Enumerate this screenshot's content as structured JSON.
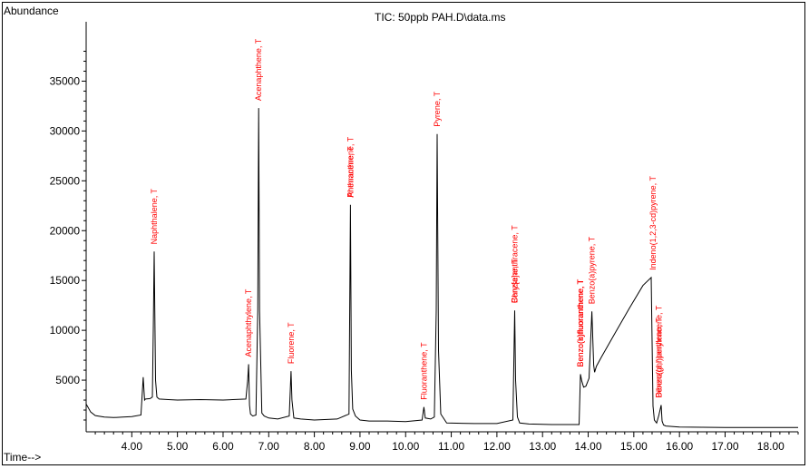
{
  "chart_data": {
    "type": "line",
    "title": "TIC: 50ppb PAH.D\\data.ms",
    "ylabel": "Abundance",
    "xlabel": "Time-->",
    "xlim": [
      3.0,
      18.6
    ],
    "ylim": [
      0,
      39500
    ],
    "x_ticks": [
      "4.00",
      "5.00",
      "6.00",
      "7.00",
      "8.00",
      "9.00",
      "10.00",
      "11.00",
      "12.00",
      "13.00",
      "14.00",
      "15.00",
      "16.00",
      "17.00",
      "18.00"
    ],
    "y_ticks": [
      "5000",
      "10000",
      "15000",
      "20000",
      "25000",
      "30000",
      "35000"
    ],
    "series": [
      {
        "x": [
          3.0,
          3.1,
          3.2,
          3.4,
          3.6,
          3.8,
          4.0,
          4.2,
          4.22,
          4.25,
          4.28,
          4.3,
          4.4,
          4.45,
          4.47,
          4.49,
          4.52,
          4.55,
          4.6,
          4.8,
          5.0,
          5.5,
          6.0,
          6.5,
          6.54,
          6.56,
          6.58,
          6.6,
          6.65,
          6.72,
          6.76,
          6.78,
          6.8,
          6.85,
          6.9,
          7.0,
          7.2,
          7.45,
          7.49,
          7.51,
          7.55,
          7.7,
          8.0,
          8.5,
          8.76,
          8.79,
          8.81,
          8.84,
          8.9,
          9.0,
          9.2,
          9.6,
          10.0,
          10.36,
          10.4,
          10.43,
          10.55,
          10.63,
          10.67,
          10.69,
          10.72,
          10.77,
          10.9,
          11.5,
          12.0,
          12.35,
          12.39,
          12.41,
          12.45,
          12.5,
          12.7,
          13.2,
          13.8,
          13.83,
          13.86,
          13.9,
          13.95,
          14.02,
          14.08,
          14.12,
          14.14,
          14.18,
          14.3,
          14.6,
          14.9,
          15.2,
          15.38,
          15.42,
          15.45,
          15.5,
          15.55,
          15.6,
          15.62,
          15.65,
          15.7,
          16.0,
          17.0,
          18.0,
          18.6
        ],
        "y": [
          2600,
          1800,
          1450,
          1300,
          1250,
          1300,
          1350,
          1500,
          3000,
          5300,
          3000,
          3100,
          3150,
          3300,
          10000,
          17900,
          5000,
          3300,
          3100,
          3050,
          3000,
          3050,
          3000,
          3100,
          5000,
          6600,
          2500,
          1600,
          1400,
          1500,
          12000,
          32300,
          12000,
          1700,
          1400,
          1200,
          1100,
          1400,
          5900,
          3000,
          1200,
          1100,
          1000,
          1100,
          1600,
          22600,
          6000,
          2100,
          1400,
          1000,
          900,
          900,
          850,
          1000,
          2300,
          1200,
          1100,
          1300,
          12000,
          29700,
          8000,
          1600,
          700,
          650,
          650,
          1000,
          12000,
          5000,
          1300,
          700,
          600,
          550,
          550,
          5600,
          4900,
          4300,
          4400,
          5200,
          11900,
          6500,
          5800,
          6400,
          7400,
          9800,
          12200,
          14500,
          15300,
          2400,
          1000,
          700,
          1500,
          2500,
          900,
          500,
          400,
          300,
          250,
          250,
          250
        ]
      }
    ],
    "annotations": [
      {
        "x": 4.49,
        "y": 17900,
        "text": "Naphthalene, T"
      },
      {
        "x": 6.56,
        "y": 6600,
        "text": "Acenaphthylene, T"
      },
      {
        "x": 6.78,
        "y": 32300,
        "text": "Acenaphthene, T"
      },
      {
        "x": 7.49,
        "y": 5900,
        "text": "Fluorene, T"
      },
      {
        "x": 8.79,
        "y": 22600,
        "text": "Phenanthrene, T"
      },
      {
        "x": 8.79,
        "y": 22600,
        "text": "Anthracene, T"
      },
      {
        "x": 10.4,
        "y": 2300,
        "text": "Fluoranthene, T"
      },
      {
        "x": 10.69,
        "y": 29700,
        "text": "Pyrene, T"
      },
      {
        "x": 12.39,
        "y": 12000,
        "text": "Benz[a]anthracene, T"
      },
      {
        "x": 12.39,
        "y": 12000,
        "text": "Chrysene, T"
      },
      {
        "x": 13.83,
        "y": 5600,
        "text": "Benzo(b)fluoranthene, T"
      },
      {
        "x": 13.83,
        "y": 5600,
        "text": "Benzo(k)fluoranthene, T"
      },
      {
        "x": 14.08,
        "y": 11900,
        "text": "Benzo(a)pyrene, T"
      },
      {
        "x": 15.42,
        "y": 15300,
        "text": "Indeno(1,2,3-cd)pyrene, T"
      },
      {
        "x": 15.55,
        "y": 2500,
        "text": "Dibenz(a,h)anthracene, T"
      },
      {
        "x": 15.55,
        "y": 2500,
        "text": "Benzo(ghi)perylene, T"
      }
    ]
  }
}
